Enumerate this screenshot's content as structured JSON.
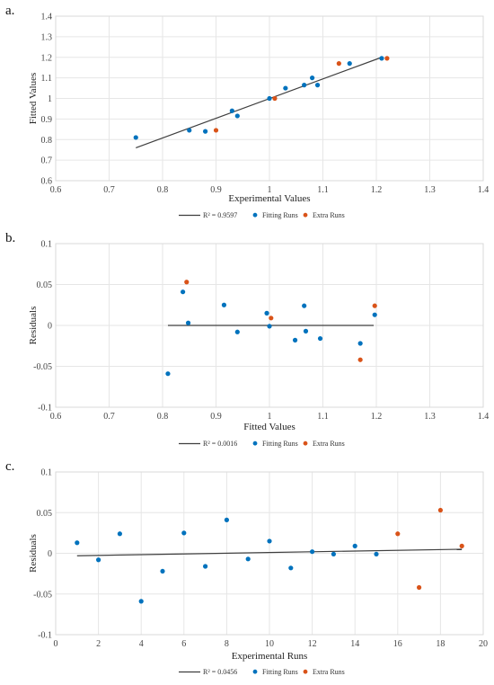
{
  "colors": {
    "fitting": "#0072BD",
    "extra": "#D95319",
    "line": "#3f3f3f"
  },
  "chart_data": [
    {
      "panel_label": "a.",
      "type": "scatter",
      "xlabel": "Experimental Values",
      "ylabel": "Fitted Values",
      "xlim": [
        0.6,
        1.4
      ],
      "ylim": [
        0.6,
        1.4
      ],
      "xticks": [
        "0.6",
        "0.7",
        "0.8",
        "0.9",
        "1",
        "1.1",
        "1.2",
        "1.3",
        "1.4"
      ],
      "yticks": [
        "0.6",
        "0.7",
        "0.8",
        "0.9",
        "1",
        "1.1",
        "1.2",
        "1.3",
        "1.4"
      ],
      "grid": true,
      "fit_line": {
        "x": [
          0.75,
          1.21
        ],
        "y": [
          0.76,
          1.2
        ]
      },
      "series": [
        {
          "name": "Fitting Runs",
          "color": "#0072BD",
          "x": [
            0.75,
            0.85,
            0.88,
            0.93,
            0.94,
            1.0,
            1.03,
            1.065,
            1.08,
            1.09,
            1.15,
            1.21
          ],
          "y": [
            0.81,
            0.845,
            0.84,
            0.94,
            0.915,
            1.0,
            1.05,
            1.065,
            1.1,
            1.065,
            1.17,
            1.195
          ]
        },
        {
          "name": "Extra Runs",
          "color": "#D95319",
          "x": [
            0.9,
            1.01,
            1.13,
            1.22
          ],
          "y": [
            0.845,
            1.0,
            1.17,
            1.195
          ]
        }
      ],
      "legend": {
        "line_label": "R² = 0.9597",
        "series_labels": [
          "Fitting Runs",
          "Extra Runs"
        ],
        "placement": "bottom"
      }
    },
    {
      "panel_label": "b.",
      "type": "scatter",
      "xlabel": "Fitted Values",
      "ylabel": "Residuals",
      "xlim": [
        0.6,
        1.4
      ],
      "ylim": [
        -0.1,
        0.1
      ],
      "xticks": [
        "0.6",
        "0.7",
        "0.8",
        "0.9",
        "1",
        "1.1",
        "1.2",
        "1.3",
        "1.4"
      ],
      "yticks": [
        "-0.1",
        "-0.05",
        "0",
        "0.05",
        "0.1"
      ],
      "grid": true,
      "fit_line": {
        "x": [
          0.81,
          1.195
        ],
        "y": [
          0.0,
          0.0
        ]
      },
      "series": [
        {
          "name": "Fitting Runs",
          "color": "#0072BD",
          "x": [
            0.81,
            0.838,
            0.848,
            0.915,
            0.94,
            0.995,
            1.0,
            1.048,
            1.065,
            1.068,
            1.095,
            1.17,
            1.197
          ],
          "y": [
            -0.059,
            0.041,
            0.003,
            0.025,
            -0.008,
            0.015,
            -0.001,
            -0.018,
            0.024,
            -0.007,
            -0.016,
            -0.022,
            0.013
          ]
        },
        {
          "name": "Extra Runs",
          "color": "#D95319",
          "x": [
            0.845,
            1.003,
            1.17,
            1.197
          ],
          "y": [
            0.053,
            0.009,
            -0.042,
            0.024
          ]
        }
      ],
      "legend": {
        "line_label": "R² = 0.0016",
        "series_labels": [
          "Fitting Runs",
          "Extra Runs"
        ],
        "placement": "bottom"
      }
    },
    {
      "panel_label": "c.",
      "type": "scatter",
      "xlabel": "Experimental Runs",
      "ylabel": "Residuals",
      "xlim": [
        0,
        20
      ],
      "ylim": [
        -0.1,
        0.1
      ],
      "xticks": [
        "0",
        "2",
        "4",
        "6",
        "8",
        "10",
        "12",
        "14",
        "16",
        "18",
        "20"
      ],
      "yticks": [
        "-0.1",
        "-0.05",
        "0",
        "0.05",
        "0.1"
      ],
      "grid": true,
      "fit_line": {
        "x": [
          1,
          19
        ],
        "y": [
          -0.003,
          0.005
        ]
      },
      "series": [
        {
          "name": "Fitting Runs",
          "color": "#0072BD",
          "x": [
            1,
            2,
            3,
            4,
            5,
            6,
            7,
            8,
            9,
            10,
            11,
            12,
            13,
            14,
            15
          ],
          "y": [
            0.013,
            -0.008,
            0.024,
            -0.059,
            -0.022,
            0.025,
            -0.016,
            0.041,
            -0.007,
            0.015,
            -0.018,
            0.002,
            -0.001,
            0.009,
            -0.001
          ]
        },
        {
          "name": "Extra Runs",
          "color": "#D95319",
          "x": [
            16,
            17,
            18,
            19
          ],
          "y": [
            0.024,
            -0.042,
            0.053,
            0.009
          ]
        }
      ],
      "legend": {
        "line_label": "R² = 0.0456",
        "series_labels": [
          "Fitting Runs",
          "Extra Runs"
        ],
        "placement": "bottom"
      }
    }
  ]
}
